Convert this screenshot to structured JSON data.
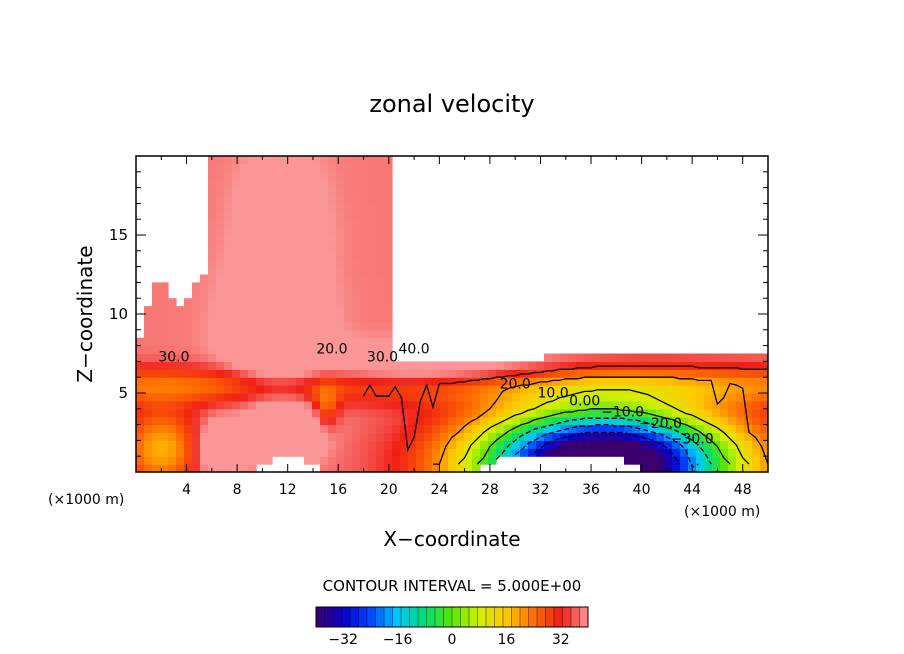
{
  "chart_data": {
    "type": "contour",
    "title": "zonal velocity",
    "xlabel": "X−coordinate",
    "ylabel": "Z−coordinate",
    "x_unit_left": "(×1000 m)",
    "x_unit_right": "(×1000 m)",
    "xlim": [
      0,
      50
    ],
    "ylim": [
      0,
      20
    ],
    "x_ticks": [
      4,
      8,
      12,
      16,
      20,
      24,
      28,
      32,
      36,
      40,
      44,
      48
    ],
    "y_ticks": [
      5,
      10,
      15
    ],
    "contour_interval_text": "CONTOUR INTERVAL = 5.000E+00",
    "contour_labels": [
      {
        "text": "30.0",
        "x": 3.0,
        "z": 7.0
      },
      {
        "text": "20.0",
        "x": 15.5,
        "z": 7.5
      },
      {
        "text": "30.0",
        "x": 19.5,
        "z": 7.0
      },
      {
        "text": "40.0",
        "x": 22.0,
        "z": 7.5
      },
      {
        "text": "20.0",
        "x": 30.0,
        "z": 5.3
      },
      {
        "text": "10.0",
        "x": 33.0,
        "z": 4.7
      },
      {
        "text": "0.00",
        "x": 35.5,
        "z": 4.2
      },
      {
        "text": "−10.0",
        "x": 38.5,
        "z": 3.5
      },
      {
        "text": "−20.0",
        "x": 41.5,
        "z": 2.8
      },
      {
        "text": "−30.0",
        "x": 44.0,
        "z": 1.8
      }
    ],
    "field_features": [
      {
        "x": 11,
        "z": 9,
        "amp": 16,
        "sx": 3.5,
        "sz": 4.0
      },
      {
        "x": 11.5,
        "z": 16,
        "amp": 10,
        "sx": 3.0,
        "sz": 4.0
      },
      {
        "x": 12,
        "z": 2.5,
        "amp": 25,
        "sx": 2.5,
        "sz": 1.5
      },
      {
        "x": 6.5,
        "z": 1.5,
        "amp": 18,
        "sx": 1.5,
        "sz": 1.5
      },
      {
        "x": 2,
        "z": 1.5,
        "amp": -20,
        "sx": 3.0,
        "sz": 2.5
      },
      {
        "x": 15,
        "z": 4,
        "amp": -12,
        "sx": 1.0,
        "sz": 1.5
      },
      {
        "x": 37,
        "z": 0.5,
        "amp": -95,
        "sx": 10.0,
        "sz": 3.5
      },
      {
        "x": 23,
        "z": 6.5,
        "amp": 12,
        "sx": 10.0,
        "sz": 1.5
      }
    ],
    "colorbar": {
      "min": -40,
      "max": 40,
      "ticks": [
        -32,
        -16,
        0,
        16,
        32
      ],
      "tick_labels": [
        "−32",
        "−16",
        "0",
        "16",
        "32"
      ]
    },
    "white_regions": [
      "upper-right above x 20, z 7",
      "upper-left corner",
      "bottom near x 12",
      "bottom near x 32"
    ]
  }
}
